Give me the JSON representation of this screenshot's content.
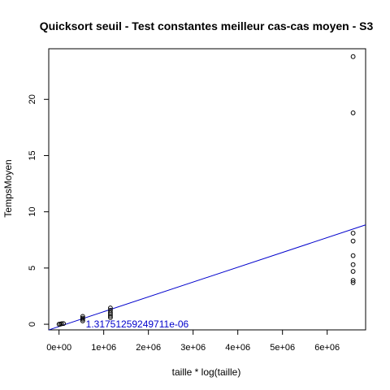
{
  "chart_data": {
    "type": "scatter",
    "title": "Quicksort  seuil - Test constantes meilleur cas-cas moyen - S3",
    "xlabel": "taille * log(taille)",
    "ylabel": "TempsMoyen",
    "xlim": [
      -230000,
      6860000
    ],
    "ylim": [
      -0.5,
      24.5
    ],
    "x_ticks": [
      0,
      1000000,
      2000000,
      3000000,
      4000000,
      5000000,
      6000000
    ],
    "x_tick_labels": [
      "0e+00",
      "1e+06",
      "2e+06",
      "3e+06",
      "4e+06",
      "5e+06",
      "6e+06"
    ],
    "y_ticks": [
      0,
      5,
      10,
      15,
      20
    ],
    "y_tick_labels": [
      "0",
      "5",
      "10",
      "15",
      "20"
    ],
    "grid": false,
    "points": [
      {
        "x": 0,
        "y": 0.0
      },
      {
        "x": 30000,
        "y": 0.02
      },
      {
        "x": 60000,
        "y": 0.05
      },
      {
        "x": 100000,
        "y": 0.06
      },
      {
        "x": 530000,
        "y": 0.3
      },
      {
        "x": 530000,
        "y": 0.45
      },
      {
        "x": 530000,
        "y": 0.55
      },
      {
        "x": 530000,
        "y": 0.7
      },
      {
        "x": 1150000,
        "y": 0.6
      },
      {
        "x": 1150000,
        "y": 0.75
      },
      {
        "x": 1150000,
        "y": 0.9
      },
      {
        "x": 1150000,
        "y": 1.05
      },
      {
        "x": 1150000,
        "y": 1.25
      },
      {
        "x": 1150000,
        "y": 1.45
      },
      {
        "x": 6580000,
        "y": 3.7
      },
      {
        "x": 6580000,
        "y": 3.9
      },
      {
        "x": 6580000,
        "y": 4.7
      },
      {
        "x": 6580000,
        "y": 5.3
      },
      {
        "x": 6580000,
        "y": 6.1
      },
      {
        "x": 6580000,
        "y": 7.4
      },
      {
        "x": 6580000,
        "y": 8.1
      },
      {
        "x": 6580000,
        "y": 18.8
      },
      {
        "x": 6580000,
        "y": 23.8
      }
    ],
    "regression_line": {
      "slope": 1.31751259249711e-06,
      "intercept": -0.2,
      "color": "#0000cc"
    },
    "annotation": {
      "text": "1.31751259249711e-06",
      "x": 600000,
      "y": 0.0,
      "color": "#0000cc"
    }
  }
}
